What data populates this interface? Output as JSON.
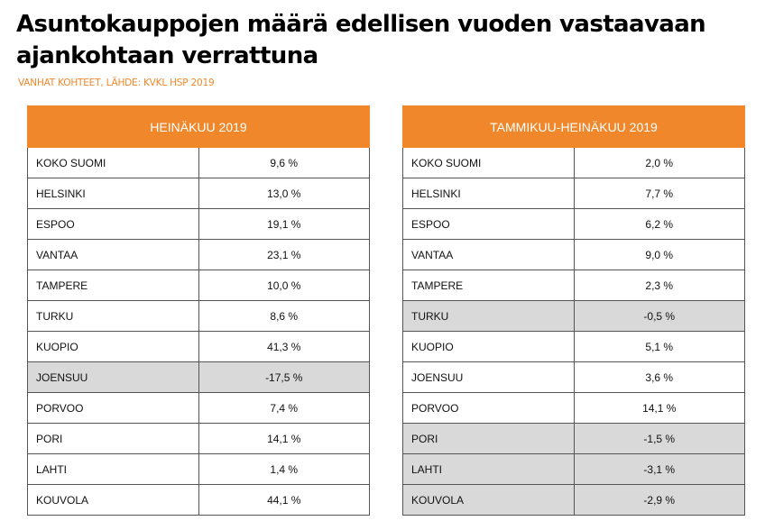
{
  "title": "Asuntokauppojen määrä edellisen vuoden vastaavaan ajankohtaan verrattuna",
  "subtitle": "VANHAT KOHTEET, LÄHDE: KVKL HSP 2019",
  "colors": {
    "header_bg": "#f0872a",
    "negative_row_bg": "#d9d9d9"
  },
  "left_table": {
    "header": "HEINÄKUU 2019",
    "rows": [
      {
        "city": "KOKO SUOMI",
        "value": "9,6 %"
      },
      {
        "city": "HELSINKI",
        "value": "13,0 %"
      },
      {
        "city": "ESPOO",
        "value": "19,1 %"
      },
      {
        "city": "VANTAA",
        "value": "23,1 %"
      },
      {
        "city": "TAMPERE",
        "value": "10,0 %"
      },
      {
        "city": "TURKU",
        "value": "8,6 %"
      },
      {
        "city": "KUOPIO",
        "value": "41,3 %"
      },
      {
        "city": "JOENSUU",
        "value": "-17,5 %"
      },
      {
        "city": "PORVOO",
        "value": "7,4 %"
      },
      {
        "city": "PORI",
        "value": "14,1 %"
      },
      {
        "city": "LAHTI",
        "value": "1,4 %"
      },
      {
        "city": "KOUVOLA",
        "value": "44,1 %"
      }
    ]
  },
  "right_table": {
    "header": "TAMMIKUU-HEINÄKUU 2019",
    "rows": [
      {
        "city": "KOKO SUOMI",
        "value": "2,0 %"
      },
      {
        "city": "HELSINKI",
        "value": "7,7 %"
      },
      {
        "city": "ESPOO",
        "value": "6,2 %"
      },
      {
        "city": "VANTAA",
        "value": "9,0 %"
      },
      {
        "city": "TAMPERE",
        "value": "2,3 %"
      },
      {
        "city": "TURKU",
        "value": "-0,5 %"
      },
      {
        "city": "KUOPIO",
        "value": "5,1 %"
      },
      {
        "city": "JOENSUU",
        "value": "3,6 %"
      },
      {
        "city": "PORVOO",
        "value": "14,1 %"
      },
      {
        "city": "PORI",
        "value": "-1,5 %"
      },
      {
        "city": "LAHTI",
        "value": "-3,1 %"
      },
      {
        "city": "KOUVOLA",
        "value": "-2,9 %"
      }
    ]
  }
}
